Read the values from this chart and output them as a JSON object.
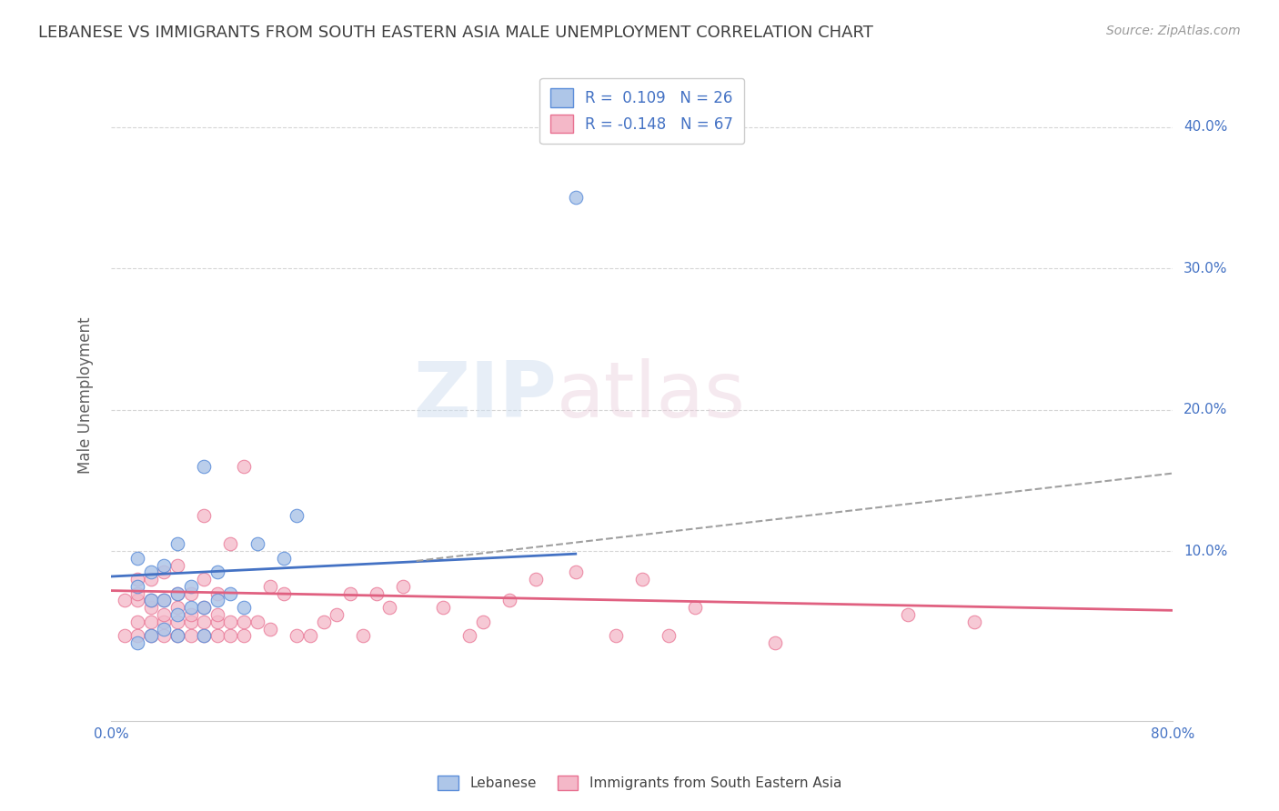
{
  "title": "LEBANESE VS IMMIGRANTS FROM SOUTH EASTERN ASIA MALE UNEMPLOYMENT CORRELATION CHART",
  "source": "Source: ZipAtlas.com",
  "ylabel": "Male Unemployment",
  "xlim": [
    0.0,
    0.8
  ],
  "ylim": [
    -0.02,
    0.44
  ],
  "xticks": [
    0.0,
    0.8
  ],
  "xticklabels": [
    "0.0%",
    "80.0%"
  ],
  "ytick_positions": [
    0.1,
    0.2,
    0.3,
    0.4
  ],
  "ytick_labels": [
    "10.0%",
    "20.0%",
    "30.0%",
    "40.0%"
  ],
  "watermark_zip": "ZIP",
  "watermark_atlas": "atlas",
  "legend_blue_label": "R =  0.109   N = 26",
  "legend_pink_label": "R = -0.148   N = 67",
  "legend_blue_series": "Lebanese",
  "legend_pink_series": "Immigrants from South Eastern Asia",
  "blue_color": "#aec6e8",
  "pink_color": "#f4b8c8",
  "blue_edge_color": "#5b8dd9",
  "pink_edge_color": "#e87090",
  "blue_line_color": "#4472C4",
  "pink_line_color": "#e06080",
  "dash_line_color": "#a0a0a0",
  "background_color": "#ffffff",
  "grid_color": "#cccccc",
  "title_color": "#404040",
  "axis_label_color": "#606060",
  "tick_color": "#4472C4",
  "blue_scatter_x": [
    0.02,
    0.02,
    0.02,
    0.03,
    0.03,
    0.03,
    0.04,
    0.04,
    0.04,
    0.05,
    0.05,
    0.05,
    0.05,
    0.06,
    0.06,
    0.07,
    0.07,
    0.07,
    0.08,
    0.08,
    0.09,
    0.1,
    0.11,
    0.13,
    0.14,
    0.35
  ],
  "blue_scatter_y": [
    0.035,
    0.075,
    0.095,
    0.04,
    0.065,
    0.085,
    0.045,
    0.065,
    0.09,
    0.04,
    0.055,
    0.07,
    0.105,
    0.06,
    0.075,
    0.04,
    0.06,
    0.16,
    0.065,
    0.085,
    0.07,
    0.06,
    0.105,
    0.095,
    0.125,
    0.35
  ],
  "pink_scatter_x": [
    0.01,
    0.01,
    0.02,
    0.02,
    0.02,
    0.02,
    0.02,
    0.03,
    0.03,
    0.03,
    0.03,
    0.03,
    0.04,
    0.04,
    0.04,
    0.04,
    0.04,
    0.05,
    0.05,
    0.05,
    0.05,
    0.05,
    0.06,
    0.06,
    0.06,
    0.06,
    0.07,
    0.07,
    0.07,
    0.07,
    0.07,
    0.08,
    0.08,
    0.08,
    0.08,
    0.09,
    0.09,
    0.09,
    0.1,
    0.1,
    0.1,
    0.11,
    0.12,
    0.12,
    0.13,
    0.14,
    0.15,
    0.16,
    0.17,
    0.18,
    0.19,
    0.2,
    0.21,
    0.22,
    0.25,
    0.27,
    0.28,
    0.3,
    0.32,
    0.35,
    0.38,
    0.4,
    0.42,
    0.44,
    0.5,
    0.6,
    0.65
  ],
  "pink_scatter_y": [
    0.04,
    0.065,
    0.04,
    0.05,
    0.065,
    0.07,
    0.08,
    0.04,
    0.05,
    0.06,
    0.065,
    0.08,
    0.04,
    0.05,
    0.055,
    0.065,
    0.085,
    0.04,
    0.05,
    0.06,
    0.07,
    0.09,
    0.04,
    0.05,
    0.055,
    0.07,
    0.04,
    0.05,
    0.06,
    0.08,
    0.125,
    0.04,
    0.05,
    0.055,
    0.07,
    0.04,
    0.05,
    0.105,
    0.04,
    0.05,
    0.16,
    0.05,
    0.045,
    0.075,
    0.07,
    0.04,
    0.04,
    0.05,
    0.055,
    0.07,
    0.04,
    0.07,
    0.06,
    0.075,
    0.06,
    0.04,
    0.05,
    0.065,
    0.08,
    0.085,
    0.04,
    0.08,
    0.04,
    0.06,
    0.035,
    0.055,
    0.05
  ],
  "blue_line_x0": 0.0,
  "blue_line_y0": 0.082,
  "blue_line_x1": 0.35,
  "blue_line_y1": 0.098,
  "dash_line_x0": 0.23,
  "dash_line_y0": 0.093,
  "dash_line_x1": 0.8,
  "dash_line_y1": 0.155,
  "pink_line_x0": 0.0,
  "pink_line_y0": 0.072,
  "pink_line_x1": 0.8,
  "pink_line_y1": 0.058
}
